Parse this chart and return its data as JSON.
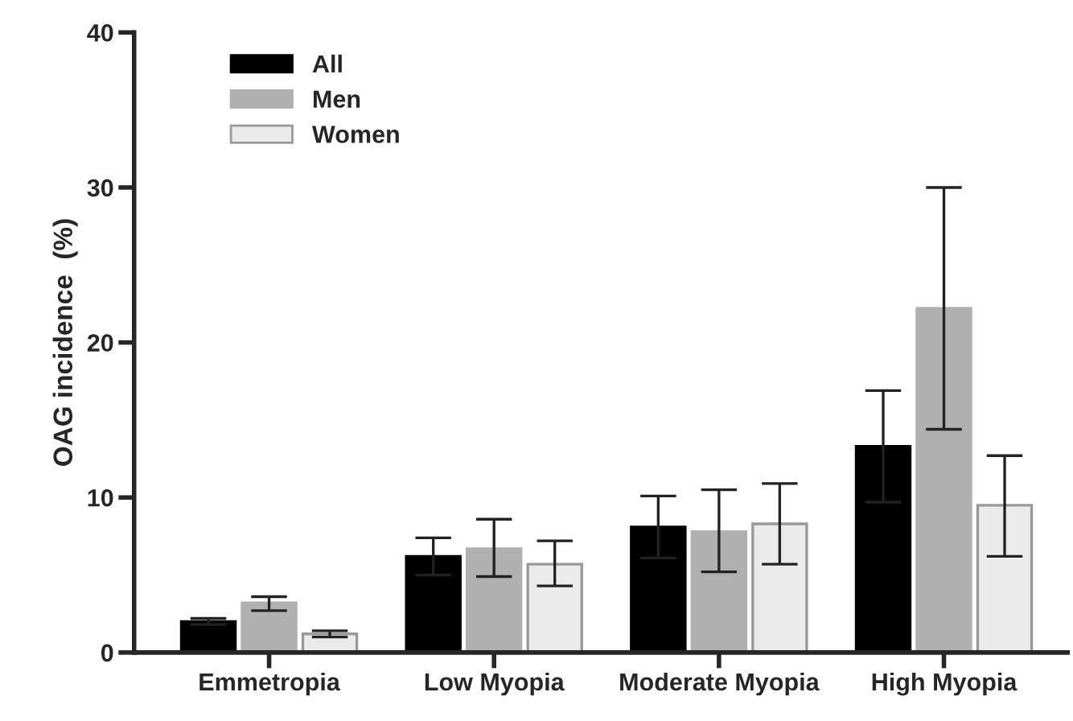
{
  "chart_data": {
    "type": "bar",
    "ylabel": "OAG incidence  (%)",
    "categories": [
      "Emmetropia",
      "Low Myopia",
      "Moderate Myopia",
      "High Myopia"
    ],
    "series": [
      {
        "name": "All",
        "color": "#000000",
        "values": [
          2.0,
          6.2,
          8.1,
          13.3
        ],
        "errors": [
          0.2,
          1.2,
          2.0,
          3.6
        ]
      },
      {
        "name": "Men",
        "color": "#b0b0b0",
        "values": [
          3.2,
          6.7,
          7.8,
          22.2
        ],
        "errors": [
          [
            2.7,
            3.6
          ],
          [
            4.9,
            8.6
          ],
          [
            5.2,
            10.5
          ],
          [
            14.4,
            30.0
          ]
        ]
      },
      {
        "name": "Women",
        "color": "#ebebeb",
        "values": [
          1.2,
          5.7,
          8.3,
          9.5
        ],
        "errors": [
          [
            1.0,
            1.4
          ],
          [
            4.3,
            7.2
          ],
          [
            5.7,
            10.9
          ],
          [
            6.2,
            12.7
          ]
        ]
      }
    ],
    "ylim": [
      0,
      40
    ],
    "yticks": [
      0,
      10,
      20,
      30,
      40
    ],
    "grid": false,
    "legend": "top left"
  }
}
